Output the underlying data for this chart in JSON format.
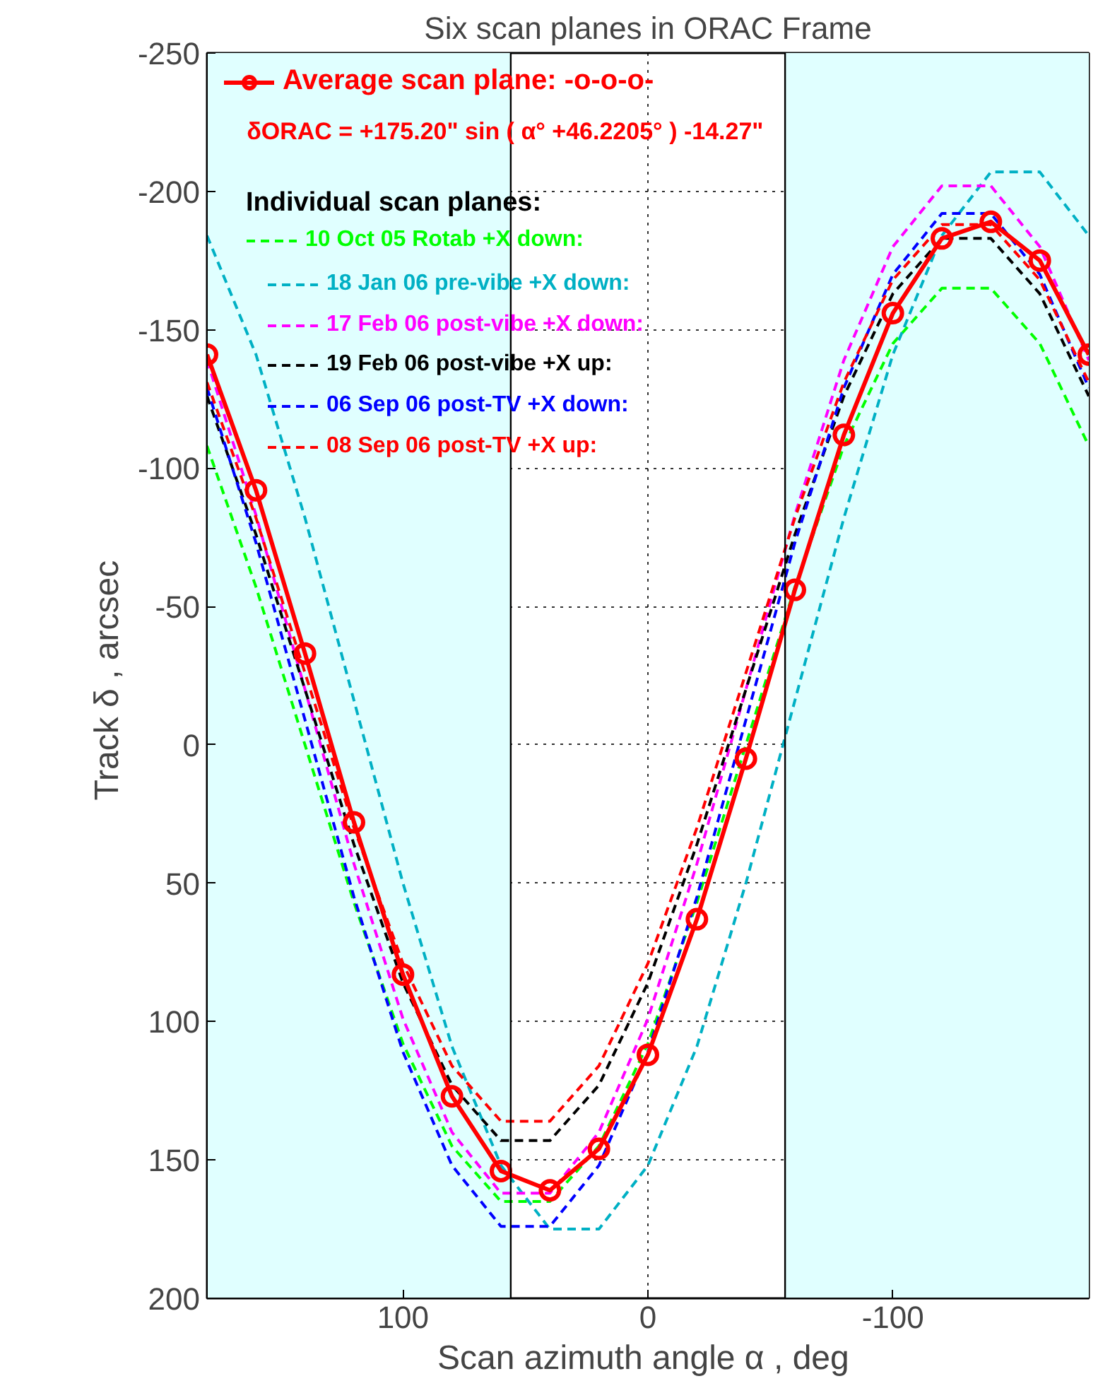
{
  "chart_data": {
    "type": "line",
    "title": "Six scan planes in ORAC Frame",
    "xlabel": "Scan azimuth angle  α , deg",
    "ylabel": "Track  δ , arcsec",
    "x": [
      180,
      160,
      140,
      120,
      100,
      80,
      60,
      40,
      20,
      0,
      -20,
      -40,
      -60,
      -80,
      -100,
      -120,
      -140,
      -160,
      -180
    ],
    "xlim": [
      180,
      -180
    ],
    "xticks": [
      100,
      0,
      -100
    ],
    "ylim": [
      200,
      -250
    ],
    "yticks": [
      -250,
      -200,
      -150,
      -100,
      -50,
      0,
      50,
      100,
      150,
      200
    ],
    "grid": true,
    "legend": "top left",
    "legend_title": "Individual scan planes:",
    "annotations": [
      "δORAC = +175.20\" sin ( α° +46.2205° ) -14.27\""
    ],
    "bands": [
      {
        "axis": "x",
        "from": 180,
        "to": 56,
        "color": "#e0ffff"
      },
      {
        "axis": "x",
        "from": -56,
        "to": -180,
        "color": "#e0ffff"
      }
    ],
    "ref_lines": [
      {
        "axis": "x",
        "value": 56,
        "color": "#000000"
      },
      {
        "axis": "x",
        "value": -56,
        "color": "#000000"
      }
    ],
    "series": [
      {
        "name": "10 Oct 05 Rotab +X down:",
        "color": "#00ff00",
        "line_style": "dashed",
        "values": [
          -108,
          -57,
          0,
          57,
          108,
          145,
          165,
          165,
          145,
          108,
          57,
          0,
          -57,
          -108,
          -145,
          -165,
          -165,
          -145,
          -108
        ]
      },
      {
        "name": "18 Jan 06 pre-vibe +X down:",
        "color": "#00b0c4",
        "line_style": "dashed",
        "values": [
          -184,
          -141,
          -82,
          -16,
          50,
          109,
          152,
          175,
          175,
          152,
          109,
          50,
          -16,
          -82,
          -141,
          -184,
          -207,
          -207,
          -184
        ]
      },
      {
        "name": "17 Feb 06 post-vibe +X down:",
        "color": "#ff00ff",
        "line_style": "dashed",
        "values": [
          -139,
          -83,
          -20,
          43,
          99,
          140,
          162,
          162,
          140,
          99,
          43,
          -20,
          -83,
          -139,
          -180,
          -202,
          -202,
          -180,
          -139
        ]
      },
      {
        "name": "19 Feb 06 post-vibe +X up:",
        "color": "#000000",
        "line_style": "dashed",
        "values": [
          -126,
          -76,
          -20,
          36,
          86,
          123,
          143,
          143,
          123,
          86,
          36,
          -20,
          -76,
          -126,
          -163,
          -183,
          -183,
          -163,
          -126
        ]
      },
      {
        "name": "06 Sep 06 post-TV +X down:",
        "color": "#0000ff",
        "line_style": "dashed",
        "values": [
          -129,
          -73,
          -9,
          55,
          111,
          152,
          174,
          174,
          152,
          111,
          55,
          -9,
          -73,
          -129,
          -170,
          -192,
          -192,
          -170,
          -129
        ]
      },
      {
        "name": "08 Sep 06 post-TV +X up:",
        "color": "#ff0000",
        "line_style": "dashed",
        "values": [
          -131,
          -82,
          -26,
          30,
          79,
          116,
          136,
          136,
          116,
          79,
          30,
          -26,
          -82,
          -131,
          -168,
          -188,
          -188,
          -168,
          -131
        ]
      },
      {
        "name": "Average scan plane: -o-o-o-",
        "color": "#ff0000",
        "line_style": "solid",
        "marker": "circle",
        "values": [
          -141,
          -92,
          -33,
          28,
          83,
          127,
          154,
          161,
          146,
          112,
          63,
          5,
          -56,
          -112,
          -156,
          -183,
          -189,
          -175,
          -141
        ]
      }
    ]
  }
}
